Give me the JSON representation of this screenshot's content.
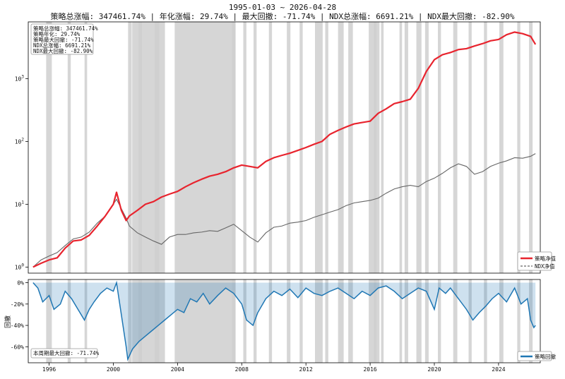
{
  "chart_data": [
    {
      "type": "line",
      "title": "1995-01-03 ~ 2026-04-28",
      "subtitle": "策略总涨幅: 347461.74% | 年化涨幅: 29.74% | 最大回撤: -71.74% | NDX总涨幅: 6691.21% | NDX最大回撤: -82.90%",
      "yscale": "log",
      "ylim": [
        0.8,
        8000
      ],
      "xlim": [
        1994.7,
        2026.6
      ],
      "ytick_labels": [
        "10^0",
        "10^1",
        "10^2",
        "10^3"
      ],
      "ytick_values": [
        1,
        10,
        100,
        1000
      ],
      "stats_box": [
        "策略总涨幅: 347461.74%",
        "策略年化: 29.74%",
        "策略最大回撤: -71.74%",
        "NDX总涨幅: 6691.21%",
        "NDX最大回撤: -82.90%"
      ],
      "legend_position": "bottom-right",
      "series": [
        {
          "name": "策略净值",
          "color": "#e8242e",
          "x": [
            1995.0,
            1995.5,
            1996.0,
            1996.5,
            1997.0,
            1997.5,
            1998.0,
            1998.5,
            1999.0,
            1999.5,
            2000.0,
            2000.2,
            2000.5,
            2000.8,
            2001.0,
            2001.5,
            2002.0,
            2002.5,
            2003.0,
            2003.5,
            2004.0,
            2004.5,
            2005.0,
            2005.5,
            2006.0,
            2006.5,
            2007.0,
            2007.5,
            2008.0,
            2008.5,
            2009.0,
            2009.5,
            2010.0,
            2010.5,
            2011.0,
            2011.5,
            2012.0,
            2012.5,
            2013.0,
            2013.5,
            2014.0,
            2014.5,
            2015.0,
            2015.5,
            2016.0,
            2016.5,
            2017.0,
            2017.5,
            2018.0,
            2018.5,
            2019.0,
            2019.5,
            2020.0,
            2020.5,
            2021.0,
            2021.5,
            2022.0,
            2022.5,
            2023.0,
            2023.5,
            2024.0,
            2024.5,
            2025.0,
            2025.5,
            2026.0,
            2026.3
          ],
          "values": [
            1.0,
            1.15,
            1.3,
            1.4,
            2.0,
            2.6,
            2.7,
            3.2,
            4.5,
            6.5,
            10.0,
            15.5,
            8.0,
            5.5,
            6.5,
            8.0,
            10.0,
            11.0,
            13.0,
            14.5,
            16.0,
            19.0,
            22.0,
            25.0,
            28.0,
            30.0,
            33.0,
            38.0,
            42.0,
            40.0,
            38.0,
            48.0,
            55.0,
            60.0,
            65.0,
            72.0,
            80.0,
            90.0,
            100.0,
            130.0,
            150.0,
            170.0,
            190.0,
            200.0,
            210.0,
            280.0,
            330.0,
            400.0,
            430.0,
            470.0,
            700.0,
            1300.0,
            2000.0,
            2400.0,
            2600.0,
            2900.0,
            3000.0,
            3300.0,
            3600.0,
            4000.0,
            4200.0,
            5000.0,
            5500.0,
            5200.0,
            4700.0,
            3500.0
          ]
        },
        {
          "name": "NDX净值",
          "color": "#666666",
          "x": [
            1995.0,
            1995.5,
            1996.0,
            1996.5,
            1997.0,
            1997.5,
            1998.0,
            1998.5,
            1999.0,
            1999.5,
            2000.0,
            2000.2,
            2000.5,
            2000.8,
            2001.0,
            2001.5,
            2002.0,
            2002.5,
            2003.0,
            2003.5,
            2004.0,
            2004.5,
            2005.0,
            2005.5,
            2006.0,
            2006.5,
            2007.0,
            2007.5,
            2008.0,
            2008.5,
            2009.0,
            2009.5,
            2010.0,
            2010.5,
            2011.0,
            2011.5,
            2012.0,
            2012.5,
            2013.0,
            2013.5,
            2014.0,
            2014.5,
            2015.0,
            2015.5,
            2016.0,
            2016.5,
            2017.0,
            2017.5,
            2018.0,
            2018.5,
            2019.0,
            2019.5,
            2020.0,
            2020.5,
            2021.0,
            2021.5,
            2022.0,
            2022.5,
            2023.0,
            2023.5,
            2024.0,
            2024.5,
            2025.0,
            2025.5,
            2026.0,
            2026.3
          ],
          "values": [
            1.0,
            1.3,
            1.5,
            1.7,
            2.2,
            2.8,
            3.0,
            3.6,
            5.0,
            6.5,
            10.0,
            12.0,
            8.5,
            6.0,
            4.5,
            3.5,
            3.0,
            2.6,
            2.3,
            3.0,
            3.3,
            3.3,
            3.5,
            3.6,
            3.8,
            3.7,
            4.2,
            4.8,
            3.8,
            3.0,
            2.5,
            3.5,
            4.3,
            4.5,
            5.0,
            5.2,
            5.5,
            6.2,
            6.8,
            7.5,
            8.2,
            9.5,
            10.5,
            11.0,
            11.5,
            12.5,
            15.0,
            17.5,
            19.0,
            20.0,
            19.0,
            23.0,
            26.0,
            31.0,
            38.0,
            44.0,
            40.0,
            30.0,
            33.0,
            40.0,
            45.0,
            49.0,
            55.0,
            54.0,
            58.0,
            64.0
          ]
        }
      ]
    },
    {
      "type": "area",
      "ylabel": "回撤",
      "ylim": [
        -75,
        3
      ],
      "xlim": [
        1994.7,
        2026.6
      ],
      "ytick_labels": [
        "0%",
        "-20%",
        "-40%",
        "-60%"
      ],
      "ytick_values": [
        0,
        -20,
        -40,
        -60
      ],
      "xtick_labels": [
        "1996",
        "2000",
        "2004",
        "2008",
        "2012",
        "2016",
        "2020",
        "2024"
      ],
      "xtick_values": [
        1996,
        2000,
        2004,
        2008,
        2012,
        2016,
        2020,
        2024
      ],
      "annotation": "本周期最大回撤: -71.74%",
      "legend_position": "bottom-right",
      "series": [
        {
          "name": "策略回撤",
          "color": "#1f77b4",
          "x": [
            1995.0,
            1995.3,
            1995.6,
            1996.0,
            1996.3,
            1996.7,
            1997.0,
            1997.4,
            1997.8,
            1998.2,
            1998.5,
            1998.8,
            1999.2,
            1999.6,
            2000.0,
            2000.2,
            2000.5,
            2000.8,
            2000.9,
            2001.2,
            2001.6,
            2002.0,
            2002.4,
            2002.8,
            2003.2,
            2003.6,
            2004.0,
            2004.4,
            2004.8,
            2005.2,
            2005.6,
            2006.0,
            2006.5,
            2007.0,
            2007.5,
            2008.0,
            2008.3,
            2008.7,
            2009.0,
            2009.5,
            2010.0,
            2010.5,
            2011.0,
            2011.5,
            2012.0,
            2012.5,
            2013.0,
            2013.5,
            2014.0,
            2014.5,
            2015.0,
            2015.5,
            2016.0,
            2016.5,
            2017.0,
            2017.5,
            2018.0,
            2018.5,
            2019.0,
            2019.5,
            2020.0,
            2020.3,
            2020.7,
            2021.0,
            2021.5,
            2022.0,
            2022.4,
            2022.8,
            2023.2,
            2023.6,
            2024.0,
            2024.5,
            2025.0,
            2025.4,
            2025.8,
            2026.0,
            2026.2,
            2026.3
          ],
          "values": [
            0,
            -5,
            -18,
            -12,
            -25,
            -20,
            -8,
            -15,
            -25,
            -35,
            -25,
            -18,
            -10,
            -5,
            -8,
            0,
            -30,
            -60,
            -71.74,
            -62,
            -55,
            -50,
            -45,
            -40,
            -35,
            -30,
            -25,
            -28,
            -15,
            -18,
            -10,
            -20,
            -12,
            -5,
            -10,
            -20,
            -35,
            -40,
            -28,
            -15,
            -8,
            -12,
            -6,
            -14,
            -5,
            -10,
            -12,
            -8,
            -5,
            -10,
            -15,
            -8,
            -12,
            -5,
            -3,
            -8,
            -15,
            -10,
            -5,
            -8,
            -25,
            -5,
            -10,
            -5,
            -15,
            -25,
            -35,
            -28,
            -22,
            -15,
            -10,
            -18,
            -5,
            -20,
            -15,
            -35,
            -42,
            -40
          ]
        }
      ]
    }
  ]
}
